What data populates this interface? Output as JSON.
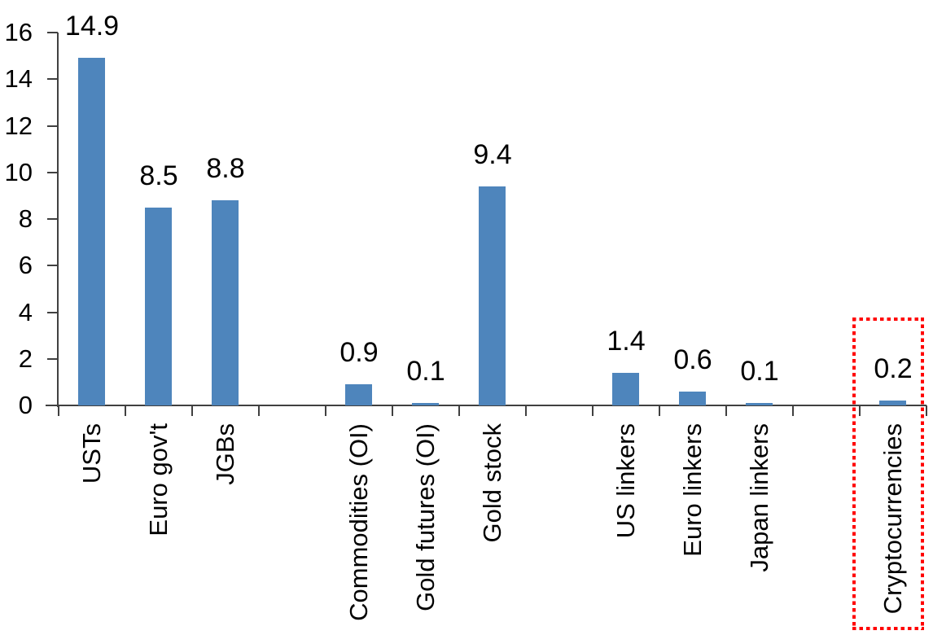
{
  "chart_data": {
    "type": "bar",
    "title": "",
    "xlabel": "",
    "ylabel": "",
    "categories": [
      "USTs",
      "Euro gov't",
      "JGBs",
      "Commodities (OI)",
      "Gold futures (OI)",
      "Gold stock",
      "US linkers",
      "Euro linkers",
      "Japan linkers",
      "Cryptocurrencies"
    ],
    "values": [
      14.9,
      8.5,
      8.8,
      0.9,
      0.1,
      9.4,
      1.4,
      0.6,
      0.1,
      0.2
    ],
    "value_labels": [
      "14.9",
      "8.5",
      "8.8",
      "0.9",
      "0.1",
      "9.4",
      "1.4",
      "0.6",
      "0.1",
      "0.2"
    ],
    "groups": [
      [
        "USTs",
        "Euro gov't",
        "JGBs"
      ],
      [
        "Commodities (OI)",
        "Gold futures (OI)",
        "Gold stock"
      ],
      [
        "US linkers",
        "Euro linkers",
        "Japan linkers"
      ],
      [
        "Cryptocurrencies"
      ]
    ],
    "slot_indices": [
      0,
      1,
      2,
      4,
      5,
      6,
      8,
      9,
      10,
      12
    ],
    "num_slots": 13,
    "ylim": [
      0,
      16
    ],
    "y_ticks": [
      0,
      2,
      4,
      6,
      8,
      10,
      12,
      14,
      16
    ],
    "grid": false,
    "legend": false,
    "x_labels_rotated_degrees": -90,
    "bar_color": "#4e85bc",
    "axis_color": "#404040",
    "text_color": "#000000",
    "background_color": "#ffffff",
    "highlight": {
      "category": "Cryptocurrencies",
      "style": "red-dotted-box",
      "color": "#ff0000"
    }
  }
}
